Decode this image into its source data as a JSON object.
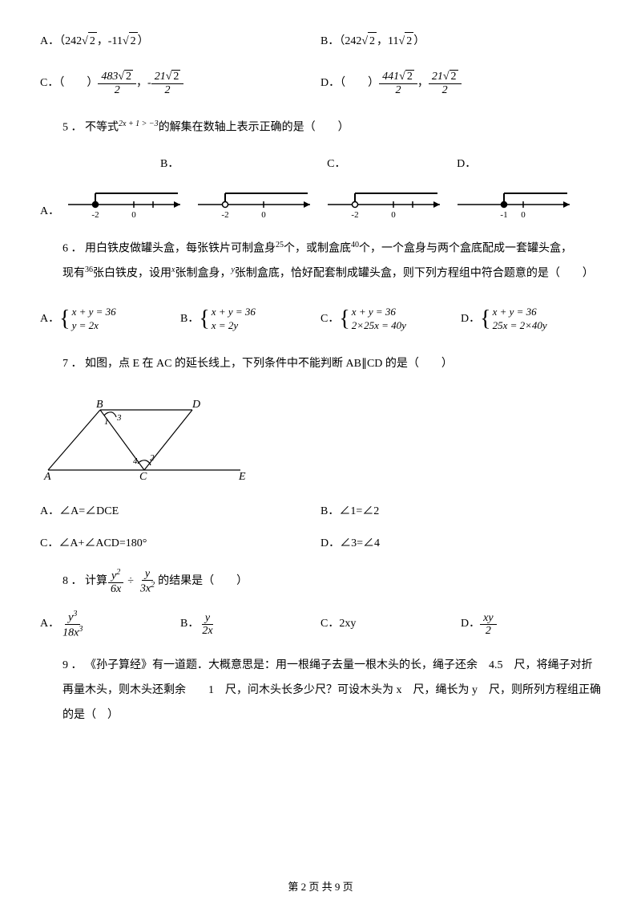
{
  "q4": {
    "optA_prefix": "A．（242",
    "optA_mid": "，-11",
    "optA_suffix": "）",
    "optB_prefix": "B．（242",
    "optB_mid": "，11",
    "optB_suffix": "）",
    "optC_label": "C．（　　）",
    "optC_num1": "483",
    "optC_num2": "21",
    "optD_label": "D．（　　）",
    "optD_num1": "441",
    "optD_num2": "21",
    "den2": "2",
    "sqrt2": "2",
    "minus": "，-",
    "comma": "，"
  },
  "q5": {
    "text_prefix": "5 ． 不等式",
    "expr": "2x + 1 > −3",
    "text_suffix": "的解集在数轴上表示正确的是（　　）",
    "labelA": "A．",
    "labelB": "B．",
    "labelC": "C．",
    "labelD": "D．",
    "lines": [
      {
        "open": false,
        "mark": -2,
        "dir": "right",
        "ticks": [
          {
            "x": -2,
            "l": "-2"
          },
          {
            "x": 0,
            "l": "0"
          }
        ],
        "extra": true
      },
      {
        "open": true,
        "mark": -2,
        "dir": "right",
        "ticks": [
          {
            "x": -2,
            "l": "-2"
          },
          {
            "x": 0,
            "l": "0"
          }
        ],
        "extra": false
      },
      {
        "open": true,
        "mark": -2,
        "dir": "right",
        "ticks": [
          {
            "x": -2,
            "l": "-2"
          },
          {
            "x": 0,
            "l": "0"
          }
        ],
        "extra": true
      },
      {
        "open": false,
        "mark": -1,
        "dir": "right",
        "ticks": [
          {
            "x": -1,
            "l": "-1"
          },
          {
            "x": 0,
            "l": "0"
          }
        ],
        "extra": false
      }
    ]
  },
  "q6": {
    "text_a": "6 ．  用白铁皮做罐头盒，每张铁片可制盒身",
    "n25": "25",
    "text_b": "个，或制盒底",
    "n40": "40",
    "text_c": "个，一个盒身与两个盒底配成一套罐头盒，",
    "text_d": "现有",
    "n36": "36",
    "text_e": "张白铁皮，设用",
    "x": "x",
    "text_f": "张制盒身，",
    "y": "y",
    "text_g": "张制盒底，恰好配套制成罐头盒，则下列方程组中符合题意的是（　　）",
    "labelA": "A．",
    "labelB": "B．",
    "labelC": "C．",
    "labelD": "D．",
    "eqA1": "x + y = 36",
    "eqA2": "y = 2x",
    "eqB1": "x + y = 36",
    "eqB2": "x = 2y",
    "eqC1": "x + y = 36",
    "eqC2": "2×25x = 40y",
    "eqD1": "x + y = 36",
    "eqD2": "25x = 2×40y"
  },
  "q7": {
    "text": "7 ． 如图，点 E 在 AC 的延长线上，下列条件中不能判断 AB∥CD 的是（　　）",
    "optA": "A．∠A=∠DCE",
    "optB": "B．∠1=∠2",
    "optC": "C．∠A+∠ACD=180°",
    "optD": "D．∠3=∠4",
    "labels": {
      "A": "A",
      "B": "B",
      "C": "C",
      "D": "D",
      "E": "E",
      "1": "1",
      "2": "2",
      "3": "3",
      "4": "4"
    }
  },
  "q8": {
    "text_prefix": "8 ． 计算",
    "div": "÷",
    "text_suffix": " 的结果是（　　）",
    "labelA": "A．",
    "labelB": "B．",
    "labelC": "C．2xy",
    "labelD": "D．",
    "f1_num": "y",
    "f1_den": "6x",
    "f2_num": "y",
    "f2_den": "3x",
    "a_num": "y",
    "a_den": "18x",
    "b_num": "y",
    "b_den": "2x",
    "d_num": "xy",
    "d_den": "2"
  },
  "q9": {
    "text": "9 ． 《孙子算经》有一道题．大概意思是：用一根绳子去量一根木头的长，绳子还余　4.5　尺，将绳子对折再量木头，则木头还剩余　　1　尺，问木头长多少尺？可设木头为 x　尺，绳长为 y　尺，则所列方程组正确的是（　）"
  },
  "footer": "第 2 页 共 9 页"
}
